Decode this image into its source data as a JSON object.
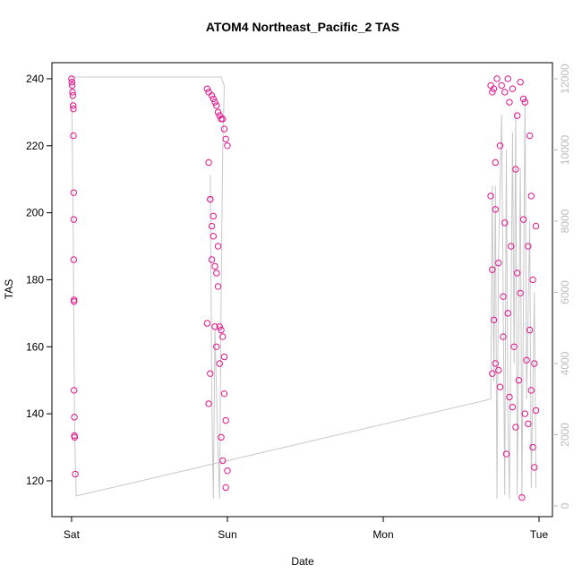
{
  "chart_data": {
    "type": "scatter",
    "title": "ATOM4 Northeast_Pacific_2 TAS",
    "xlabel": "Date",
    "ylabel": "TAS",
    "xlim": [
      -0.126,
      3.086
    ],
    "xticks": [
      {
        "value": 0,
        "label": "Sat"
      },
      {
        "value": 1,
        "label": "Sun"
      },
      {
        "value": 2,
        "label": "Mon"
      },
      {
        "value": 3,
        "label": "Tue"
      }
    ],
    "ylim": [
      109.3,
      244.8
    ],
    "yticks": [
      120,
      140,
      160,
      180,
      200,
      220,
      240
    ],
    "y2lim": [
      -302,
      12453
    ],
    "y2ticks": [
      0,
      2000,
      4000,
      6000,
      8000,
      10000,
      12000
    ],
    "series": [
      {
        "color": "#e0148c",
        "x": [
          0.0,
          0.002,
          0.004,
          0.006,
          0.008,
          0.01,
          0.012,
          0.012,
          0.014,
          0.014,
          0.014,
          0.016,
          0.016,
          0.016,
          0.018,
          0.018,
          0.02,
          0.024,
          0.87,
          0.87,
          0.88,
          0.88,
          0.89,
          0.89,
          0.9,
          0.9,
          0.91,
          0.91,
          0.92,
          0.92,
          0.93,
          0.93,
          0.94,
          0.94,
          0.95,
          0.95,
          0.96,
          0.96,
          0.97,
          0.97,
          0.98,
          0.98,
          0.99,
          0.99,
          1.0,
          1.0,
          0.88,
          0.89,
          0.9,
          0.91,
          0.92,
          0.93,
          0.94,
          0.95,
          0.96,
          0.97,
          0.98,
          0.99,
          2.69,
          2.69,
          2.7,
          2.7,
          2.7,
          2.71,
          2.71,
          2.72,
          2.72,
          2.72,
          2.73,
          2.74,
          2.74,
          2.75,
          2.75,
          2.76,
          2.77,
          2.77,
          2.78,
          2.78,
          2.79,
          2.8,
          2.8,
          2.81,
          2.81,
          2.82,
          2.83,
          2.83,
          2.84,
          2.85,
          2.85,
          2.86,
          2.86,
          2.87,
          2.88,
          2.88,
          2.89,
          2.9,
          2.9,
          2.91,
          2.91,
          2.92,
          2.93,
          2.93,
          2.94,
          2.94,
          2.95,
          2.95,
          2.96,
          2.96,
          2.97,
          2.97,
          2.98,
          2.98
        ],
        "values": [
          240,
          239,
          238,
          236,
          235,
          232,
          231,
          223,
          206,
          198,
          186,
          174,
          173.5,
          147,
          139,
          133.5,
          133,
          122,
          237,
          167,
          236,
          143,
          204,
          152,
          235,
          186,
          234,
          199,
          233,
          166,
          232,
          160,
          230,
          190,
          229,
          155,
          228,
          133,
          228,
          126,
          225,
          146,
          222,
          138,
          220,
          123,
          215,
          204,
          196,
          193,
          184,
          182,
          178,
          166,
          165,
          163,
          157,
          118,
          238,
          205,
          152,
          183,
          236,
          168,
          237,
          155,
          215,
          201,
          240,
          153,
          185,
          220,
          148,
          238,
          175,
          163,
          236,
          197,
          128,
          240,
          170,
          145,
          233,
          190,
          142,
          237,
          160,
          213,
          136,
          229,
          182,
          150,
          239,
          176,
          115,
          234,
          198,
          140,
          233,
          156,
          190,
          137,
          223,
          165,
          147,
          205,
          130,
          180,
          155,
          124,
          196,
          141
        ]
      }
    ],
    "lines": [
      {
        "color": "#c8c8c8",
        "axis": "y2",
        "x": [
          0.89,
          0.9,
          0.91,
          0.92,
          0.94,
          0.95,
          0.96,
          0.97,
          0.98,
          0.96,
          0.0,
          0.01,
          0.02,
          0.03,
          2.69,
          2.7,
          2.71,
          2.72,
          2.73,
          2.74,
          2.76,
          2.78,
          2.79,
          2.8,
          2.81,
          2.83,
          2.84,
          2.85,
          2.86,
          2.88,
          2.89,
          2.91,
          2.92,
          2.94,
          2.95,
          2.97,
          2.98
        ],
        "values": [
          9300,
          3000,
          200,
          5000,
          1500,
          200,
          6000,
          10000,
          11800,
          12050,
          12050,
          8000,
          2000,
          280,
          3000,
          9000,
          3500,
          9000,
          200,
          7000,
          11000,
          300,
          10000,
          2500,
          200,
          10500,
          4000,
          11000,
          300,
          9500,
          200,
          11500,
          3000,
          8000,
          500,
          6000,
          500
        ]
      }
    ]
  }
}
